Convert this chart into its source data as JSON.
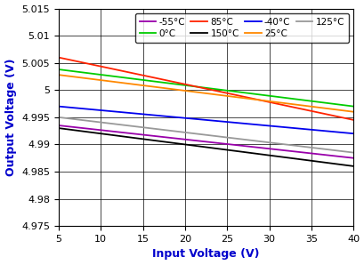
{
  "xlabel": "Input Voltage (V)",
  "ylabel": "Output Voltage (V)",
  "xlim": [
    5,
    40
  ],
  "ylim": [
    4.975,
    5.015
  ],
  "xticks": [
    5,
    10,
    15,
    20,
    25,
    30,
    35,
    40
  ],
  "yticks": [
    4.975,
    4.98,
    4.985,
    4.99,
    4.995,
    5.0,
    5.005,
    5.01,
    5.015
  ],
  "series": [
    {
      "label": "-55°C",
      "color": "#9900AA",
      "start": 4.9935,
      "end": 4.9875
    },
    {
      "label": "0°C",
      "color": "#00CC00",
      "start": 5.0038,
      "end": 4.997
    },
    {
      "label": "85°C",
      "color": "#FF2200",
      "start": 5.006,
      "end": 4.9945
    },
    {
      "label": "150°C",
      "color": "#000000",
      "start": 4.993,
      "end": 4.986
    },
    {
      "label": "-40°C",
      "color": "#0000EE",
      "start": 4.997,
      "end": 4.992
    },
    {
      "label": "25°C",
      "color": "#FF8800",
      "start": 5.0028,
      "end": 4.996
    },
    {
      "label": "125°C",
      "color": "#999999",
      "start": 4.995,
      "end": 4.9885
    }
  ],
  "figsize": [
    4.1,
    2.98
  ],
  "dpi": 100
}
